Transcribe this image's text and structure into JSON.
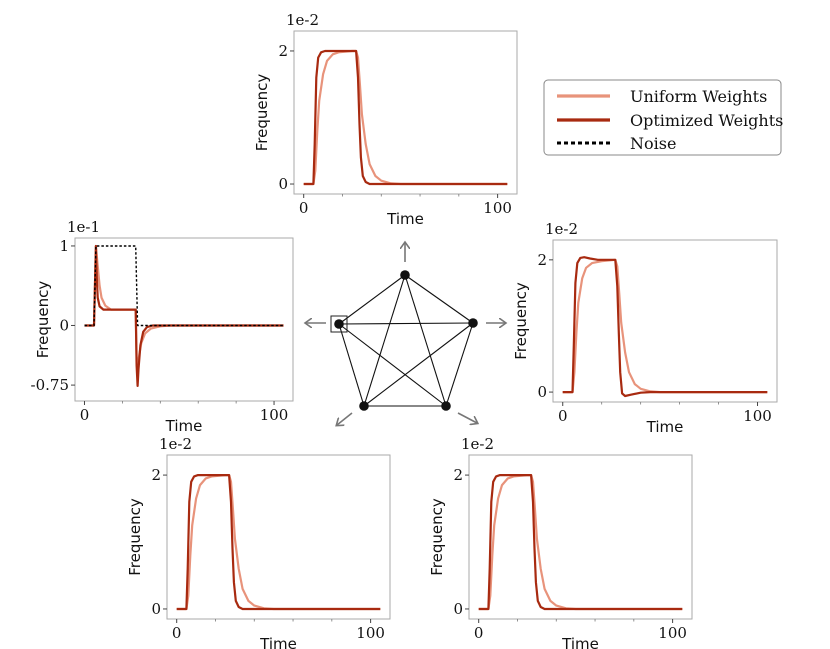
{
  "legend": {
    "entries": [
      {
        "label": "Uniform Weights",
        "color": "#e8937b",
        "style": "solid"
      },
      {
        "label": "Optimized Weights",
        "color": "#a82a10",
        "style": "solid"
      },
      {
        "label": "Noise",
        "color": "#000000",
        "style": "dotted"
      }
    ]
  },
  "chart_data": [
    {
      "id": "top",
      "type": "line",
      "xlabel": "Time",
      "ylabel": "Frequency",
      "multiplier": "1e-2",
      "xticks": [
        0,
        100
      ],
      "xtick_labels": [
        "0",
        "100"
      ],
      "yticks": [
        0,
        2
      ],
      "ytick_labels": [
        "0",
        "2"
      ],
      "xlim": [
        -5,
        110
      ],
      "ylim": [
        -0.15,
        2.3
      ],
      "series": [
        {
          "color": "#e8937b",
          "points": [
            [
              0,
              0
            ],
            [
              5,
              0
            ],
            [
              6,
              0.2
            ],
            [
              7,
              0.8
            ],
            [
              8,
              1.25
            ],
            [
              10,
              1.65
            ],
            [
              12,
              1.85
            ],
            [
              15,
              1.95
            ],
            [
              18,
              1.98
            ],
            [
              25,
              2.0
            ],
            [
              27,
              2.0
            ],
            [
              28,
              1.9
            ],
            [
              29,
              1.5
            ],
            [
              30,
              1.05
            ],
            [
              32,
              0.6
            ],
            [
              34,
              0.3
            ],
            [
              37,
              0.12
            ],
            [
              40,
              0.05
            ],
            [
              45,
              0.01
            ],
            [
              50,
              0
            ],
            [
              105,
              0
            ]
          ]
        },
        {
          "color": "#a82a10",
          "points": [
            [
              0,
              0
            ],
            [
              5,
              0
            ],
            [
              5.7,
              0.6
            ],
            [
              6.5,
              1.6
            ],
            [
              7.5,
              1.9
            ],
            [
              9,
              1.98
            ],
            [
              11,
              2.0
            ],
            [
              27,
              2.0
            ],
            [
              28,
              1.6
            ],
            [
              28.8,
              0.9
            ],
            [
              29.5,
              0.4
            ],
            [
              30.5,
              0.12
            ],
            [
              32,
              0.03
            ],
            [
              34,
              0
            ],
            [
              105,
              0
            ]
          ]
        }
      ]
    },
    {
      "id": "left",
      "type": "line",
      "xlabel": "Time",
      "ylabel": "Frequency",
      "multiplier": "1e-1",
      "xticks": [
        0,
        100
      ],
      "xtick_labels": [
        "0",
        "100"
      ],
      "yticks": [
        -0.75,
        0,
        1
      ],
      "ytick_labels": [
        "-0.75",
        "0",
        "1"
      ],
      "xlim": [
        -5,
        110
      ],
      "ylim": [
        -0.95,
        1.1
      ],
      "series": [
        {
          "color": "#e8937b",
          "points": [
            [
              0,
              0
            ],
            [
              5,
              0
            ],
            [
              6,
              1.0
            ],
            [
              7,
              0.75
            ],
            [
              8,
              0.5
            ],
            [
              9,
              0.35
            ],
            [
              11,
              0.25
            ],
            [
              14,
              0.2
            ],
            [
              27,
              0.2
            ],
            [
              27.5,
              -0.4
            ],
            [
              28,
              -0.52
            ],
            [
              29,
              -0.35
            ],
            [
              30,
              -0.22
            ],
            [
              32,
              -0.1
            ],
            [
              35,
              -0.04
            ],
            [
              40,
              -0.01
            ],
            [
              45,
              0
            ],
            [
              105,
              0
            ]
          ]
        },
        {
          "color": "#a82a10",
          "points": [
            [
              0,
              0
            ],
            [
              5,
              0
            ],
            [
              6,
              1.0
            ],
            [
              6.5,
              0.6
            ],
            [
              7,
              0.35
            ],
            [
              8,
              0.24
            ],
            [
              10,
              0.2
            ],
            [
              27,
              0.2
            ],
            [
              27.5,
              -0.5
            ],
            [
              28,
              -0.76
            ],
            [
              28.5,
              -0.55
            ],
            [
              29.5,
              -0.25
            ],
            [
              31,
              -0.08
            ],
            [
              33,
              -0.02
            ],
            [
              36,
              0
            ],
            [
              105,
              0
            ]
          ]
        },
        {
          "color": "#000000",
          "dashed": true,
          "points": [
            [
              0,
              0
            ],
            [
              5,
              0
            ],
            [
              6,
              1.0
            ],
            [
              27,
              1.0
            ],
            [
              28,
              0
            ],
            [
              105,
              0
            ]
          ]
        }
      ]
    },
    {
      "id": "right",
      "type": "line",
      "xlabel": "Time",
      "ylabel": "Frequency",
      "multiplier": "1e-2",
      "xticks": [
        0,
        100
      ],
      "xtick_labels": [
        "0",
        "100"
      ],
      "yticks": [
        0,
        2
      ],
      "ytick_labels": [
        "0",
        "2"
      ],
      "xlim": [
        -5,
        110
      ],
      "ylim": [
        -0.15,
        2.3
      ],
      "series": [
        {
          "color": "#e8937b",
          "points": [
            [
              0,
              0
            ],
            [
              5,
              0
            ],
            [
              6,
              0.3
            ],
            [
              7,
              0.9
            ],
            [
              8,
              1.35
            ],
            [
              10,
              1.72
            ],
            [
              12,
              1.88
            ],
            [
              15,
              1.95
            ],
            [
              20,
              1.98
            ],
            [
              27,
              2.0
            ],
            [
              28,
              1.9
            ],
            [
              29,
              1.5
            ],
            [
              30,
              1.05
            ],
            [
              32,
              0.6
            ],
            [
              34,
              0.3
            ],
            [
              37,
              0.12
            ],
            [
              40,
              0.05
            ],
            [
              45,
              0.01
            ],
            [
              50,
              0
            ],
            [
              105,
              0
            ]
          ]
        },
        {
          "color": "#a82a10",
          "points": [
            [
              0,
              0
            ],
            [
              5,
              0
            ],
            [
              5.7,
              0.7
            ],
            [
              6.5,
              1.65
            ],
            [
              7.5,
              1.95
            ],
            [
              9,
              2.03
            ],
            [
              11,
              2.04
            ],
            [
              14,
              2.02
            ],
            [
              18,
              2.0
            ],
            [
              27,
              2.0
            ],
            [
              28,
              1.6
            ],
            [
              28.8,
              0.9
            ],
            [
              29.5,
              0.3
            ],
            [
              30.5,
              -0.02
            ],
            [
              32,
              -0.06
            ],
            [
              35,
              -0.04
            ],
            [
              40,
              -0.01
            ],
            [
              45,
              0
            ],
            [
              105,
              0
            ]
          ]
        }
      ]
    },
    {
      "id": "bottom-left",
      "type": "line",
      "xlabel": "Time",
      "ylabel": "Frequency",
      "multiplier": "1e-2",
      "xticks": [
        0,
        100
      ],
      "xtick_labels": [
        "0",
        "100"
      ],
      "yticks": [
        0,
        2
      ],
      "ytick_labels": [
        "0",
        "2"
      ],
      "xlim": [
        -5,
        110
      ],
      "ylim": [
        -0.15,
        2.3
      ],
      "series": [
        {
          "color": "#e8937b",
          "points": [
            [
              0,
              0
            ],
            [
              5,
              0
            ],
            [
              6,
              0.2
            ],
            [
              7,
              0.8
            ],
            [
              8,
              1.25
            ],
            [
              10,
              1.65
            ],
            [
              12,
              1.85
            ],
            [
              15,
              1.95
            ],
            [
              18,
              1.98
            ],
            [
              25,
              2.0
            ],
            [
              27,
              2.0
            ],
            [
              28,
              1.9
            ],
            [
              29,
              1.5
            ],
            [
              30,
              1.05
            ],
            [
              32,
              0.6
            ],
            [
              34,
              0.3
            ],
            [
              37,
              0.12
            ],
            [
              40,
              0.05
            ],
            [
              45,
              0.01
            ],
            [
              50,
              0
            ],
            [
              105,
              0
            ]
          ]
        },
        {
          "color": "#a82a10",
          "points": [
            [
              0,
              0
            ],
            [
              5,
              0
            ],
            [
              5.7,
              0.6
            ],
            [
              6.5,
              1.6
            ],
            [
              7.5,
              1.9
            ],
            [
              9,
              1.98
            ],
            [
              11,
              2.0
            ],
            [
              27,
              2.0
            ],
            [
              28,
              1.6
            ],
            [
              28.8,
              0.9
            ],
            [
              29.5,
              0.4
            ],
            [
              30.5,
              0.12
            ],
            [
              32,
              0.03
            ],
            [
              34,
              0
            ],
            [
              105,
              0
            ]
          ]
        }
      ]
    },
    {
      "id": "bottom-right",
      "type": "line",
      "xlabel": "Time",
      "ylabel": "Frequency",
      "multiplier": "1e-2",
      "xticks": [
        0,
        100
      ],
      "xtick_labels": [
        "0",
        "100"
      ],
      "yticks": [
        0,
        2
      ],
      "ytick_labels": [
        "0",
        "2"
      ],
      "xlim": [
        -5,
        110
      ],
      "ylim": [
        -0.15,
        2.3
      ],
      "series": [
        {
          "color": "#e8937b",
          "points": [
            [
              0,
              0
            ],
            [
              5,
              0
            ],
            [
              6,
              0.2
            ],
            [
              7,
              0.8
            ],
            [
              8,
              1.25
            ],
            [
              10,
              1.65
            ],
            [
              12,
              1.85
            ],
            [
              15,
              1.95
            ],
            [
              18,
              1.98
            ],
            [
              25,
              2.0
            ],
            [
              27,
              2.0
            ],
            [
              28,
              1.9
            ],
            [
              29,
              1.5
            ],
            [
              30,
              1.05
            ],
            [
              32,
              0.6
            ],
            [
              34,
              0.3
            ],
            [
              37,
              0.12
            ],
            [
              40,
              0.05
            ],
            [
              45,
              0.01
            ],
            [
              50,
              0
            ],
            [
              105,
              0
            ]
          ]
        },
        {
          "color": "#a82a10",
          "points": [
            [
              0,
              0
            ],
            [
              5,
              0
            ],
            [
              5.7,
              0.6
            ],
            [
              6.5,
              1.6
            ],
            [
              7.5,
              1.9
            ],
            [
              9,
              1.98
            ],
            [
              11,
              2.0
            ],
            [
              27,
              2.0
            ],
            [
              28,
              1.6
            ],
            [
              28.8,
              0.9
            ],
            [
              29.5,
              0.4
            ],
            [
              30.5,
              0.12
            ],
            [
              32,
              0.03
            ],
            [
              34,
              0
            ],
            [
              105,
              0
            ]
          ]
        }
      ]
    }
  ]
}
